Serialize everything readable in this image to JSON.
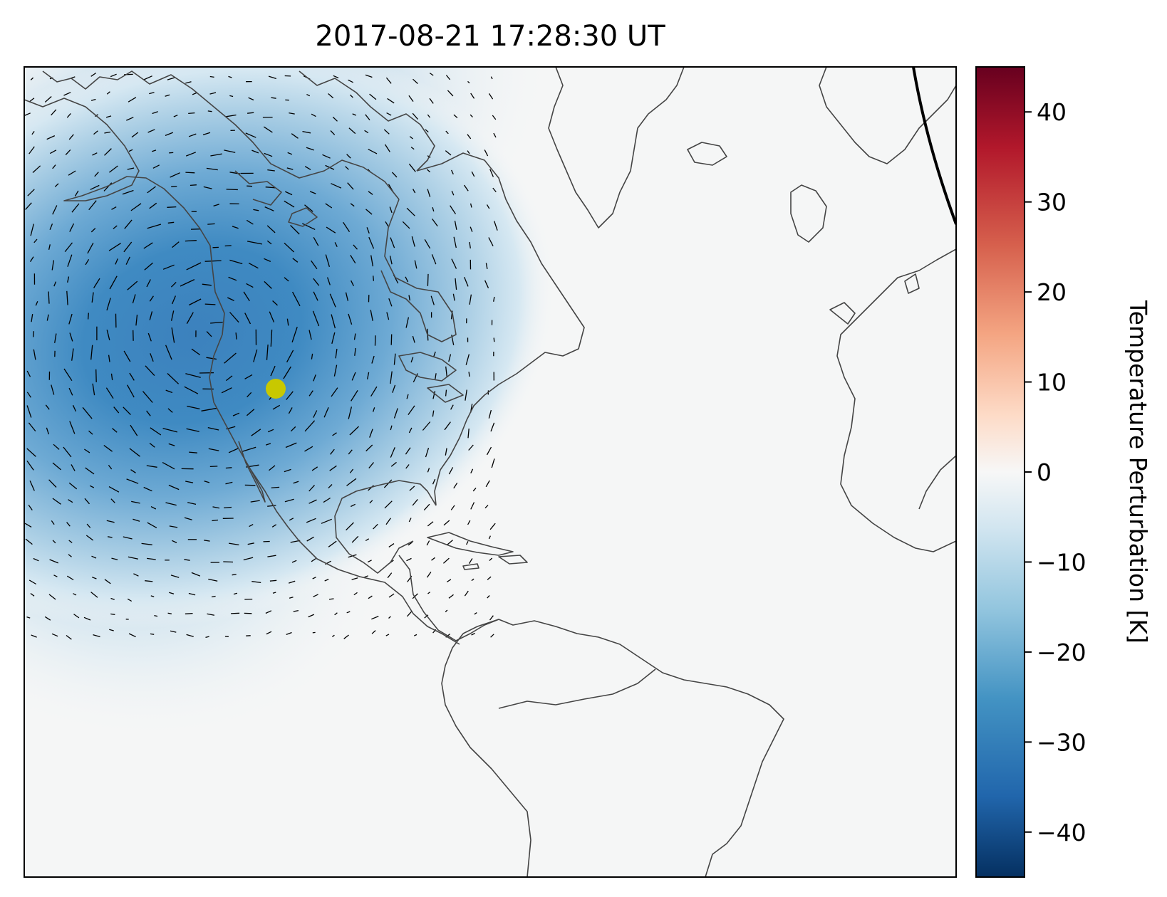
{
  "title": "2017-08-21 17:28:30 UT",
  "colorbar": {
    "label": "Temperature Perturbation [K]",
    "ticks": [
      {
        "value": 40,
        "label": "40"
      },
      {
        "value": 30,
        "label": "30"
      },
      {
        "value": 20,
        "label": "20"
      },
      {
        "value": 10,
        "label": "10"
      },
      {
        "value": 0,
        "label": "0"
      },
      {
        "value": -10,
        "label": "−10"
      },
      {
        "value": -20,
        "label": "−20"
      },
      {
        "value": -30,
        "label": "−30"
      },
      {
        "value": -40,
        "label": "−40"
      }
    ],
    "range": [
      -45,
      45
    ],
    "colormap": "RdBu_r",
    "colors": [
      "#053061",
      "#2166ac",
      "#4393c3",
      "#92c5de",
      "#d1e5f0",
      "#f7f7f7",
      "#fddbc7",
      "#f4a582",
      "#d6604d",
      "#b2182b",
      "#67001f"
    ]
  },
  "map": {
    "region": "North America and Atlantic",
    "feature": "cooling perturbation centered over western North America",
    "min_perturbation_K": -33,
    "marker": {
      "name": "subsolar/eclipse point",
      "color": "#c8c800"
    },
    "coastline_color": "#444444",
    "background_color": "#f5f6f6",
    "wind_vectors": true,
    "terminator_line": true
  }
}
